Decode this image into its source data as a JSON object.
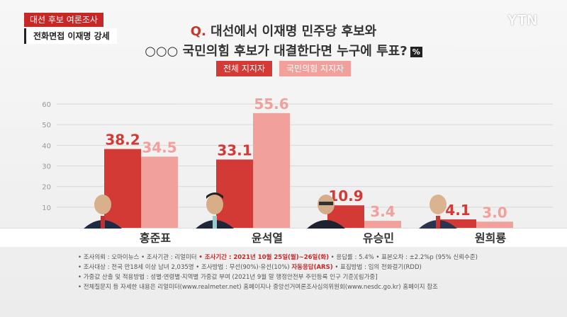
{
  "header": {
    "tag_red": "대선 후보 여론조사",
    "tag_white": "전화면접 이재명 강세",
    "logo": "YTN"
  },
  "question": {
    "line1_prefix": "Q.",
    "line1": "대선에서 이재명 민주당 후보와",
    "line2": "○○○ 국민의힘 후보가 대결한다면 누구에 투표?",
    "unit_badge": "%"
  },
  "colors": {
    "series1": "#d33a36",
    "series2": "#f2a09b"
  },
  "chart_data": {
    "type": "bar",
    "categories": [
      "홍준표",
      "윤석열",
      "유승민",
      "원희룡"
    ],
    "series": [
      {
        "name": "전체 지지자",
        "values": [
          38.2,
          33.1,
          10.9,
          4.1
        ]
      },
      {
        "name": "국민의힘 지지자",
        "values": [
          34.5,
          55.6,
          3.4,
          3.0
        ]
      }
    ],
    "ylim": [
      0,
      60
    ],
    "yticks": [
      10,
      20,
      30,
      40,
      50,
      60
    ],
    "grid": true,
    "legend_position": "top-center"
  },
  "notes": {
    "line1a": "• 조사의뢰 : 오마이뉴스    • 조사기관 : 리얼미터",
    "line1b": "• 조사기간 : 2021년 10월 25일(월)~26일(화)",
    "line1c": "• 응답률 : 5.4%    • 표본오차 : ±2.2%p (95% 신뢰수준)",
    "line2a": "• 조사대상 : 전국 만18세 이상 남녀 2,035명    • 조사방법 : 무선(90%)·유선(10%)",
    "line2b": "자동응답(ARS)",
    "line2c": "• 표집방법 : 임의 전화걸기(RDD)",
    "line3": "• 가중값 산출 및 적용방법 : 성별·연령별·지역별 가중값 부여 (2021년 9월 말 행정안전부 주민등록 인구 기준)[림가중]",
    "line4": "• 전체질문지 등 자세한 내용은 리얼미터(www.realmeter.net) 홈페이지나 중앙선거여론조사심의위원회(www.nesdc.go.kr) 홈페이지 참조"
  }
}
